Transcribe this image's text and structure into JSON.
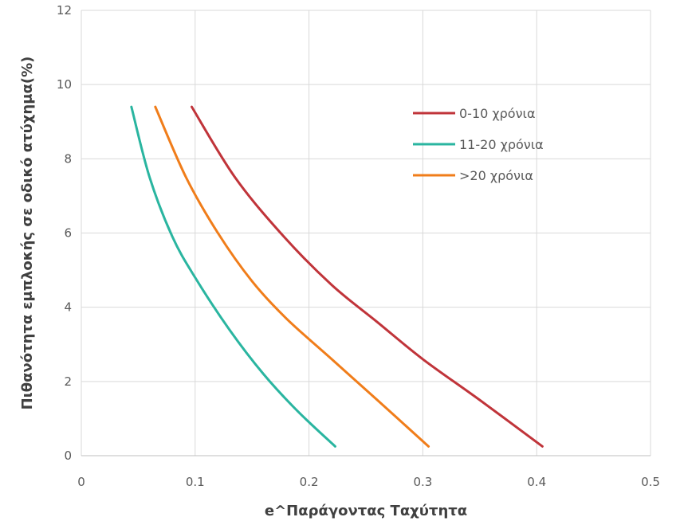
{
  "chart_data": {
    "type": "line",
    "title": "",
    "xlabel": "e^Παράγοντας Ταχύτητα",
    "ylabel": "Πιθανότητα εμπλοκής σε οδικό ατύχημα(%)",
    "xlim": [
      0,
      0.5
    ],
    "ylim": [
      0,
      12
    ],
    "x_ticks": [
      "0",
      "0.1",
      "0.2",
      "0.3",
      "0.4",
      "0.5"
    ],
    "y_ticks": [
      "0",
      "2",
      "4",
      "6",
      "8",
      "10",
      "12"
    ],
    "grid": true,
    "legend_position": "top-right, inside plot",
    "series": [
      {
        "name": "0-10 χρόνια",
        "color": "#C0343A",
        "points": [
          [
            0.097,
            9.4
          ],
          [
            0.135,
            7.5
          ],
          [
            0.178,
            5.9
          ],
          [
            0.22,
            4.6
          ],
          [
            0.26,
            3.6
          ],
          [
            0.3,
            2.6
          ],
          [
            0.35,
            1.5
          ],
          [
            0.405,
            0.25
          ]
        ]
      },
      {
        "name": "11-20 χρόνια",
        "color": "#2AB5A0",
        "points": [
          [
            0.044,
            9.4
          ],
          [
            0.06,
            7.5
          ],
          [
            0.08,
            5.9
          ],
          [
            0.1,
            4.8
          ],
          [
            0.13,
            3.4
          ],
          [
            0.16,
            2.2
          ],
          [
            0.19,
            1.2
          ],
          [
            0.223,
            0.25
          ]
        ]
      },
      {
        "name": ">20 χρόνια",
        "color": "#F07D1A",
        "points": [
          [
            0.065,
            9.4
          ],
          [
            0.092,
            7.5
          ],
          [
            0.12,
            6.0
          ],
          [
            0.15,
            4.7
          ],
          [
            0.18,
            3.7
          ],
          [
            0.22,
            2.6
          ],
          [
            0.26,
            1.5
          ],
          [
            0.305,
            0.25
          ]
        ]
      }
    ]
  }
}
